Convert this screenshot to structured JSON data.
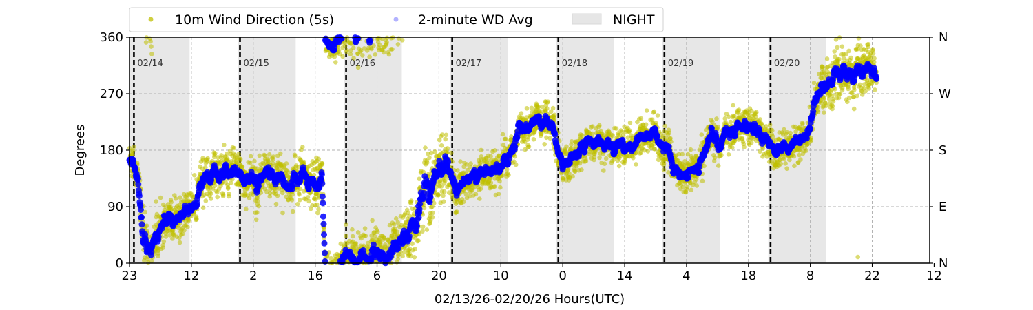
{
  "chart_data": {
    "type": "scatter",
    "title": "",
    "xlabel": "02/13/26-02/20/26  Hours(UTC)",
    "ylabel": "Degrees",
    "x_units": "hours since 02/13/26 23:00 UTC",
    "xlim": [
      0,
      181
    ],
    "ylim": [
      0,
      360
    ],
    "x_tick_labels": [
      "23",
      "12",
      "2",
      "16",
      "6",
      "20",
      "10",
      "0",
      "14",
      "4",
      "18",
      "8",
      "22",
      "12"
    ],
    "x_tick_step_hours": 14,
    "y_ticks": [
      0,
      90,
      180,
      270,
      360
    ],
    "y_tick_labels": [
      "0",
      "90",
      "180",
      "270",
      "360"
    ],
    "y2_tick_labels": [
      "N",
      "E",
      "S",
      "W",
      "N"
    ],
    "grid": true,
    "legend_position": "top",
    "legend": [
      "10m Wind Direction (5s)",
      "2-minute WD Avg",
      "NIGHT"
    ],
    "day_markers": [
      {
        "label": "02/14",
        "hour": 1
      },
      {
        "label": "02/15",
        "hour": 25
      },
      {
        "label": "02/16",
        "hour": 49
      },
      {
        "label": "02/17",
        "hour": 73
      },
      {
        "label": "02/18",
        "hour": 97
      },
      {
        "label": "02/19",
        "hour": 121
      },
      {
        "label": "02/20",
        "hour": 145
      }
    ],
    "night_periods": [
      [
        0,
        13.6
      ],
      [
        24.5,
        37.6
      ],
      [
        48.5,
        61.6
      ],
      [
        72.5,
        85.6
      ],
      [
        96.5,
        109.6
      ],
      [
        120.5,
        133.6
      ],
      [
        144.5,
        157.6
      ]
    ],
    "series": [
      {
        "name": "10m Wind Direction (5s)",
        "color": "#bfbf00",
        "kind": "raw samples around the 2-minute average"
      },
      {
        "name": "2-minute WD Avg",
        "color": "#0000ff",
        "trend_points": [
          [
            0,
            165,
            25
          ],
          [
            1.9,
            150,
            30
          ],
          [
            3,
            40,
            40
          ],
          [
            5,
            20,
            35
          ],
          [
            7,
            60,
            30
          ],
          [
            8.9,
            70,
            25
          ],
          [
            12,
            75,
            25
          ],
          [
            15.2,
            90,
            25
          ],
          [
            17,
            140,
            30
          ],
          [
            20.7,
            145,
            30
          ],
          [
            26,
            135,
            30
          ],
          [
            32,
            130,
            30
          ],
          [
            38,
            130,
            30
          ],
          [
            42.6,
            125,
            35
          ],
          [
            43.5,
            140,
            30
          ],
          [
            44.3,
            355,
            20
          ],
          [
            46,
            350,
            25
          ],
          [
            50,
            5,
            30
          ],
          [
            55,
            10,
            35
          ],
          [
            61.3,
            15,
            35
          ],
          [
            64,
            60,
            45
          ],
          [
            67,
            110,
            50
          ],
          [
            70,
            150,
            50
          ],
          [
            72.3,
            160,
            35
          ],
          [
            74,
            120,
            30
          ],
          [
            77,
            135,
            25
          ],
          [
            80.1,
            145,
            25
          ],
          [
            84,
            150,
            25
          ],
          [
            89.5,
            215,
            25
          ],
          [
            93,
            225,
            25
          ],
          [
            95.7,
            215,
            25
          ],
          [
            98.1,
            155,
            25
          ],
          [
            100.4,
            175,
            25
          ],
          [
            106,
            185,
            25
          ],
          [
            112,
            190,
            25
          ],
          [
            119.2,
            200,
            25
          ],
          [
            121,
            185,
            25
          ],
          [
            123.1,
            150,
            25
          ],
          [
            126,
            135,
            25
          ],
          [
            128.6,
            150,
            25
          ],
          [
            131.7,
            200,
            25
          ],
          [
            136,
            205,
            25
          ],
          [
            141.1,
            220,
            25
          ],
          [
            145.8,
            185,
            25
          ],
          [
            150,
            195,
            25
          ],
          [
            153.6,
            205,
            25
          ],
          [
            155.2,
            275,
            30
          ],
          [
            158,
            290,
            35
          ],
          [
            161,
            300,
            35
          ],
          [
            164,
            285,
            35
          ],
          [
            167,
            300,
            35
          ],
          [
            169,
            295,
            30
          ]
        ]
      }
    ]
  }
}
